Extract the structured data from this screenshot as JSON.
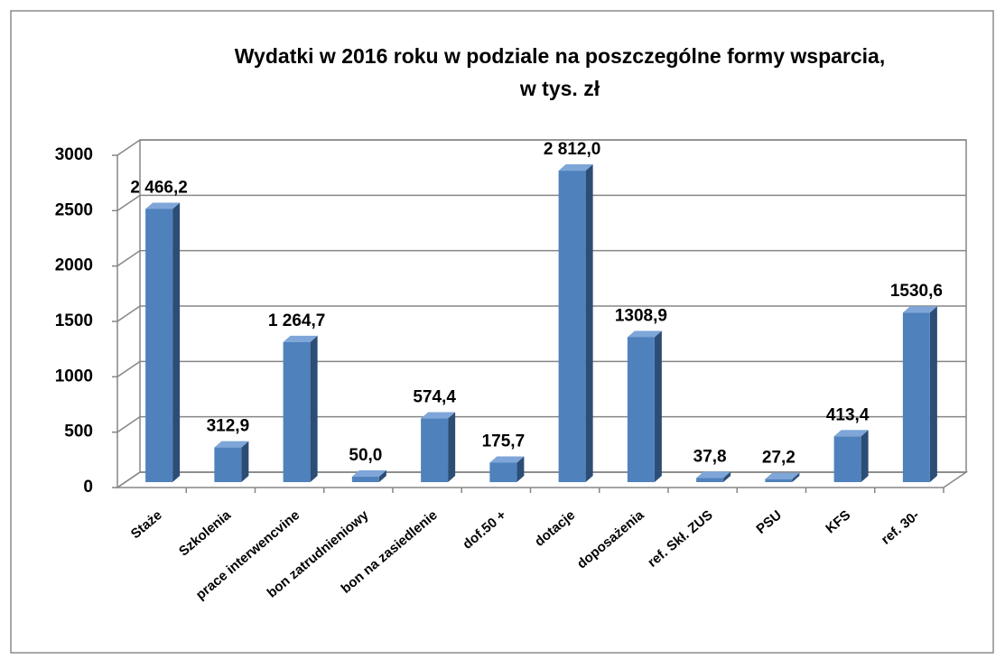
{
  "chart_data": {
    "type": "bar",
    "title": "Wydatki w 2016 roku w podziale na poszczególne formy wsparcia,",
    "subtitle": "w tys. zł",
    "categories": [
      "Staże",
      "Szkolenia",
      "prace interwencvine",
      "bon zatrudnieniowy",
      "bon na zasiedlenie",
      "dof.50 +",
      "dotacje",
      "doposażenia",
      "ref. Skł. ZUS",
      "PSU",
      "KFS",
      "ref. 30-"
    ],
    "values": [
      2466.2,
      312.9,
      1264.7,
      50.0,
      574.4,
      175.7,
      2812.0,
      1308.9,
      37.8,
      27.2,
      413.4,
      1530.6
    ],
    "value_labels": [
      "2 466,2",
      "312,9",
      "1 264,7",
      "50,0",
      "574,4",
      "175,7",
      "2 812,0",
      "1308,9",
      "37,8",
      "27,2",
      "413,4",
      "1530,6"
    ],
    "color": "#4f81bd",
    "ylim": [
      0,
      3000
    ],
    "yticks": [
      0,
      500,
      1000,
      1500,
      2000,
      2500,
      3000
    ],
    "grid": true
  }
}
